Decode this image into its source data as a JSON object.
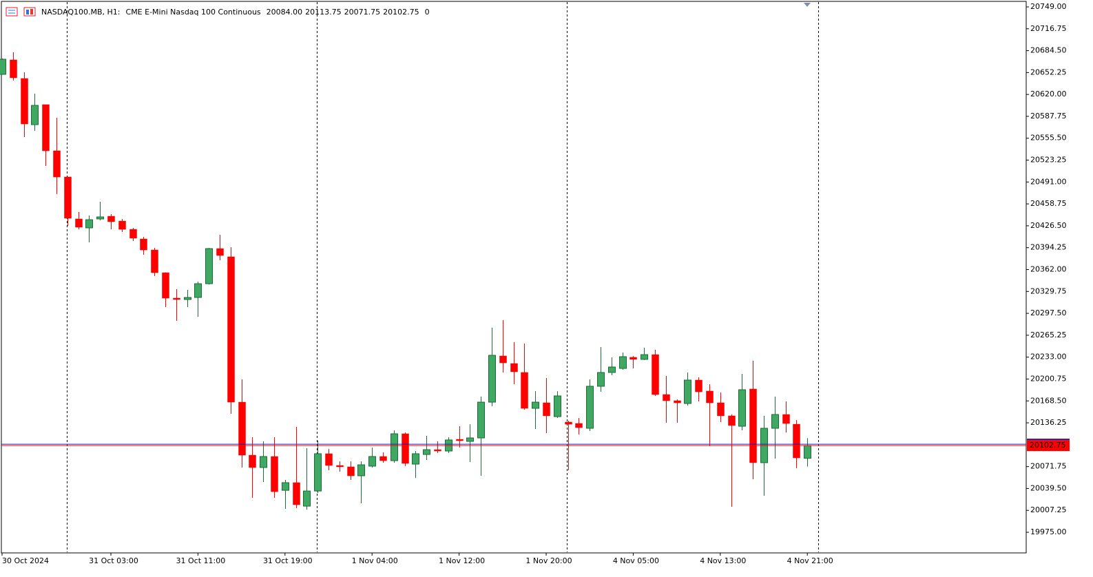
{
  "header": {
    "symbol": "NASDAQ100.MB, H1:",
    "description": "CME E-Mini Nasdaq 100 Continuous",
    "ohlc": [
      "20084.00",
      "20113.75",
      "20071.75",
      "20102.75"
    ],
    "extra": "0",
    "price_label": "20102.75"
  },
  "chart_data": {
    "type": "candlestick",
    "grid": false,
    "up_color": "#3fa862",
    "up_edge": "#1d6b37",
    "down_color": "#ff0000",
    "price_line_color": "#ff0000",
    "ask_line_color": "#1f1fb4",
    "categories": [
      "30 Oct 2024",
      null,
      null,
      null,
      null,
      null,
      null,
      null,
      null,
      null,
      "31 Oct 03:00",
      null,
      null,
      null,
      null,
      null,
      null,
      null,
      "31 Oct 11:00",
      null,
      null,
      null,
      null,
      null,
      null,
      null,
      "31 Oct 19:00",
      null,
      null,
      null,
      null,
      null,
      null,
      null,
      "1 Nov 04:00",
      null,
      null,
      null,
      null,
      null,
      null,
      null,
      "1 Nov 12:00",
      null,
      null,
      null,
      null,
      null,
      null,
      null,
      "1 Nov 20:00",
      null,
      null,
      null,
      null,
      null,
      null,
      null,
      "4 Nov 05:00",
      null,
      null,
      null,
      null,
      null,
      null,
      null,
      "4 Nov 13:00",
      null,
      null,
      null,
      null,
      null,
      null,
      null,
      "4 Nov 21:00"
    ],
    "open": [
      20649.6,
      20670.9,
      20643.5,
      20575.5,
      20605.0,
      20537.0,
      20498.4,
      20436.6,
      20423.4,
      20436.6,
      20440.6,
      20433.5,
      20421.3,
      20407.1,
      20390.9,
      20357.4,
      20319.9,
      20317.9,
      20320.9,
      20341.2,
      20392.9,
      20380.8,
      20166.7,
      20088.6,
      20070.4,
      20086.6,
      20036.8,
      20048.1,
      20013.5,
      20035.8,
      20090.7,
      20073.4,
      20071.4,
      20058.2,
      20072.4,
      20086.6,
      20080.5,
      20120.1,
      20075.4,
      20089.6,
      20096.7,
      20094.7,
      20111.9,
      20108.9,
      20114.0,
      20166.7,
      20234.7,
      20223.6,
      20210.4,
      20157.6,
      20165.7,
      20145.4,
      20137.3,
      20135.3,
      20128.2,
      20190.1,
      20210.4,
      20216.4,
      20232.7,
      20229.7,
      20236.7,
      20177.9,
      20168.8,
      20164.7,
      20199.2,
      20183.0,
      20165.7,
      20146.5,
      20131.2,
      20186.0,
      20077.5,
      20128.2,
      20148.5,
      20134.2,
      20084.0
    ],
    "high": [
      20673.0,
      20682.0,
      20652.6,
      20621.2,
      20605.0,
      20585.7,
      20499.0,
      20446.7,
      20441.6,
      20461.9,
      20443.7,
      20436.6,
      20423.4,
      20410.2,
      20393.9,
      20358.0,
      20333.1,
      20332.1,
      20344.2,
      20393.9,
      20413.2,
      20395.0,
      20200.2,
      20115.0,
      20108.9,
      20115.0,
      20052.1,
      20130.2,
      20098.8,
      20109.9,
      20097.7,
      20079.5,
      20079.5,
      20079.5,
      20099.8,
      20092.7,
      20125.1,
      20122.1,
      20094.7,
      20117.0,
      20108.9,
      20115.0,
      20131.2,
      20134.2,
      20174.8,
      20276.3,
      20287.4,
      20255.0,
      20253.0,
      20182.9,
      20202.2,
      20182.9,
      20139.3,
      20143.4,
      20200.2,
      20247.9,
      20232.7,
      20239.8,
      20234.7,
      20246.9,
      20243.8,
      20205.3,
      20170.8,
      20210.4,
      20203.2,
      20193.1,
      20180.9,
      20148.5,
      20208.3,
      20227.6,
      20146.5,
      20174.8,
      20167.7,
      20140.3,
      20113.75
    ],
    "low": [
      20649.0,
      20640.5,
      20557.3,
      20566.4,
      20514.7,
      20473.1,
      20426.4,
      20421.3,
      20402.1,
      20434.5,
      20421.3,
      20417.3,
      20404.1,
      20383.8,
      20352.4,
      20306.7,
      20286.4,
      20306.7,
      20292.5,
      20340.0,
      20375.7,
      20149.5,
      20070.4,
      20025.7,
      20049.1,
      20025.7,
      20009.5,
      20010.5,
      20008.5,
      20032.8,
      20066.3,
      20064.3,
      20052.1,
      20017.6,
      20070.4,
      20077.5,
      20077.5,
      20072.4,
      20055.1,
      20081.5,
      20091.7,
      20091.7,
      20099.8,
      20078.5,
      20058.2,
      20160.6,
      20210.4,
      20193.1,
      20155.6,
      20127.2,
      20121.1,
      20143.4,
      20066.3,
      20119.1,
      20124.1,
      20181.9,
      20206.3,
      20214.4,
      20216.4,
      20228.7,
      20175.9,
      20136.3,
      20136.3,
      20161.7,
      20167.7,
      20101.9,
      20137.3,
      20012.5,
      20125.1,
      20053.1,
      20028.8,
      20083.5,
      20122.1,
      20069.4,
      20071.75
    ],
    "close": [
      20671.9,
      20644.5,
      20576.5,
      20603.9,
      20537.0,
      20498.4,
      20437.6,
      20424.4,
      20435.5,
      20439.6,
      20432.5,
      20421.3,
      20408.2,
      20390.9,
      20357.4,
      20319.9,
      20317.9,
      20320.9,
      20341.2,
      20392.9,
      20382.8,
      20166.7,
      20088.6,
      20070.4,
      20086.6,
      20034.8,
      20048.1,
      20015.6,
      20035.8,
      20090.7,
      20073.4,
      20071.4,
      20058.2,
      20074.4,
      20086.6,
      20080.5,
      20120.1,
      20076.5,
      20090.7,
      20096.7,
      20094.7,
      20111.0,
      20109.9,
      20114.0,
      20166.7,
      20235.7,
      20224.6,
      20211.4,
      20157.6,
      20166.7,
      20146.5,
      20175.9,
      20134.2,
      20129.2,
      20190.1,
      20210.4,
      20218.5,
      20233.7,
      20229.7,
      20236.7,
      20177.9,
      20168.8,
      20165.7,
      20199.2,
      20181.9,
      20165.7,
      20146.5,
      20132.3,
      20185.0,
      20077.5,
      20128.2,
      20148.5,
      20135.3,
      20084.6,
      20102.75
    ],
    "ylim": [
      19944.6,
      20757.1
    ],
    "yticks": [
      {
        "value": 20749,
        "label": "20749.00"
      },
      20716.75,
      {
        "value": 20684.5,
        "label": "20684.50"
      },
      20652.25,
      {
        "value": 20620,
        "label": "20620.00"
      },
      20587.75,
      {
        "value": 20555.5,
        "label": "20555.50"
      },
      20523.25,
      {
        "value": 20491,
        "label": "20491.00"
      },
      20458.75,
      {
        "value": 20426.5,
        "label": "20426.50"
      },
      20394.25,
      {
        "value": 20362,
        "label": "20362.00"
      },
      20329.75,
      {
        "value": 20297.5,
        "label": "20297.50"
      },
      20265.25,
      {
        "value": 20233,
        "label": "20233.00"
      },
      20200.75,
      {
        "value": 20168.5,
        "label": "20168.50"
      },
      20136.25,
      20071.75,
      {
        "value": 20039.5,
        "label": "20039.50"
      },
      20007.25,
      {
        "value": 19975,
        "label": "19975.00"
      }
    ]
  }
}
